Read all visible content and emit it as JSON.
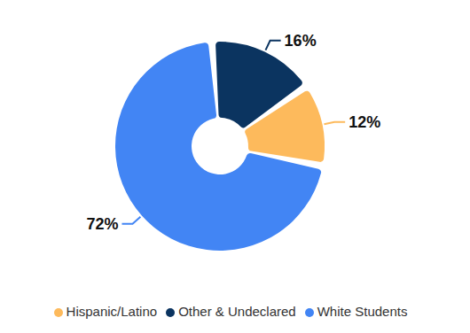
{
  "chart_data": {
    "type": "pie",
    "categories": [
      "White Students",
      "Other & Undeclared",
      "Hispanic/Latino"
    ],
    "values": [
      72,
      16,
      12
    ],
    "value_labels": [
      "72%",
      "16%",
      "12%"
    ],
    "colors": [
      "#4285F4",
      "#0B3460",
      "#FDBA5C"
    ],
    "data_labels": true,
    "legend": "bottom"
  }
}
